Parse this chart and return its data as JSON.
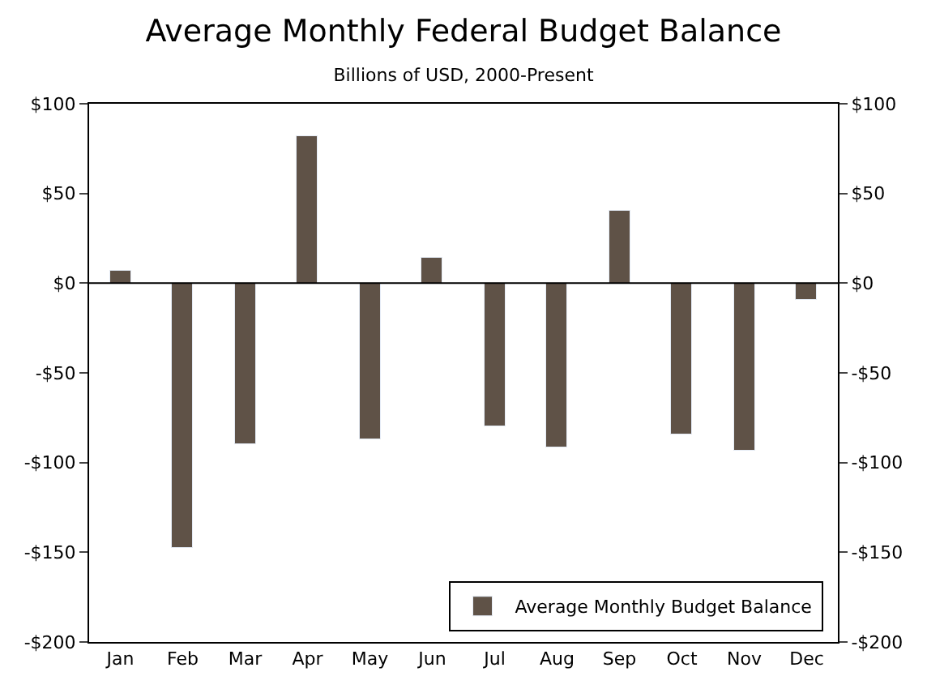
{
  "chart_data": {
    "type": "bar",
    "title": "Average Monthly Federal Budget Balance",
    "subtitle": "Billions of USD, 2000-Present",
    "categories": [
      "Jan",
      "Feb",
      "Mar",
      "Apr",
      "May",
      "Jun",
      "Jul",
      "Aug",
      "Sep",
      "Oct",
      "Nov",
      "Dec"
    ],
    "series": [
      {
        "name": "Average Monthly Budget Balance",
        "color": "#5f5247",
        "values": [
          7,
          -148,
          -90,
          82,
          -87,
          14,
          -80,
          -92,
          40,
          -84,
          -93,
          -9
        ]
      }
    ],
    "ylim": [
      -200,
      100
    ],
    "yticks": [
      {
        "value": -200,
        "label": "-$200"
      },
      {
        "value": -150,
        "label": "-$150"
      },
      {
        "value": -100,
        "label": "-$100"
      },
      {
        "value": -50,
        "label": "-$50"
      },
      {
        "value": 0,
        "label": "$0"
      },
      {
        "value": 50,
        "label": "$50"
      },
      {
        "value": 100,
        "label": "$100"
      }
    ],
    "y2lim": [
      -200,
      100
    ],
    "y2ticks": [
      {
        "value": -200,
        "label": "-$200"
      },
      {
        "value": -150,
        "label": "-$150"
      },
      {
        "value": -100,
        "label": "-$100"
      },
      {
        "value": -50,
        "label": "-$50"
      },
      {
        "value": 0,
        "label": "$0"
      },
      {
        "value": 50,
        "label": "$50"
      },
      {
        "value": 100,
        "label": "$100"
      }
    ],
    "legend": "bottom right"
  }
}
